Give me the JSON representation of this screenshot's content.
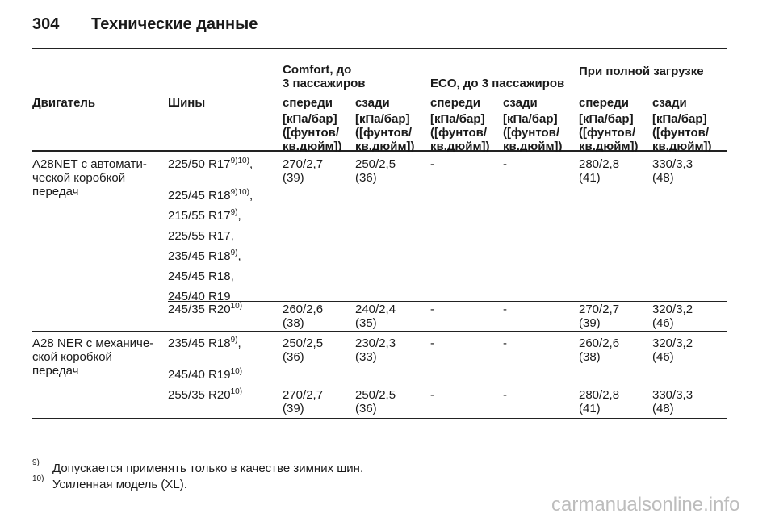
{
  "header": {
    "page_number": "304",
    "title": "Технические данные"
  },
  "table": {
    "group_headers": [
      [
        "Comfort, до",
        "3 пассажиров"
      ],
      [
        "ECO, до 3 пассажиров"
      ],
      [
        "При полной загрузке"
      ]
    ],
    "column_headers": [
      "Двигатель",
      "Шины",
      "спереди",
      "сзади",
      "спереди",
      "сзади",
      "спереди",
      "сзади"
    ],
    "unit_label": [
      "[кПа/бар]",
      "([фунтов/",
      "кв.дюйм])"
    ],
    "rows": [
      {
        "engine": [
          "A28NET с автомати-",
          "ческой коробкой",
          "передач"
        ],
        "groups": [
          {
            "tyres": [
              {
                "size": "225/50 R17",
                "note": "9)10)",
                "suffix": ","
              },
              {
                "size": "225/45 R18",
                "note": "9)10)",
                "suffix": ","
              },
              {
                "size": "215/55 R17",
                "note": "9)",
                "suffix": ","
              },
              {
                "size": "225/55 R17,"
              },
              {
                "size": "235/45 R18",
                "note": "9)",
                "suffix": ","
              },
              {
                "size": "245/45 R18,"
              },
              {
                "size": "245/40 R19"
              }
            ],
            "pressures": [
              [
                "270/2,7",
                "(39)"
              ],
              [
                "250/2,5",
                "(36)"
              ],
              [
                "-"
              ],
              [
                "-"
              ],
              [
                "280/2,8",
                "(41)"
              ],
              [
                "330/3,3",
                "(48)"
              ]
            ]
          },
          {
            "tyres": [
              {
                "size": "245/35 R20",
                "note": "10)"
              }
            ],
            "pressures": [
              [
                "260/2,6",
                "(38)"
              ],
              [
                "240/2,4",
                "(35)"
              ],
              [
                "-"
              ],
              [
                "-"
              ],
              [
                "270/2,7",
                "(39)"
              ],
              [
                "320/3,2",
                "(46)"
              ]
            ]
          }
        ]
      },
      {
        "engine": [
          "A28 NER с механиче-",
          "ской коробкой",
          "передач"
        ],
        "groups": [
          {
            "tyres": [
              {
                "size": "235/45 R18",
                "note": "9)",
                "suffix": ","
              },
              {
                "size": "245/40 R19",
                "note": "10)"
              }
            ],
            "pressures": [
              [
                "250/2,5",
                "(36)"
              ],
              [
                "230/2,3",
                "(33)"
              ],
              [
                "-"
              ],
              [
                "-"
              ],
              [
                "260/2,6",
                "(38)"
              ],
              [
                "320/3,2",
                "(46)"
              ]
            ]
          },
          {
            "tyres": [
              {
                "size": "255/35 R20",
                "note": "10)"
              }
            ],
            "pressures": [
              [
                "270/2,7",
                "(39)"
              ],
              [
                "250/2,5",
                "(36)"
              ],
              [
                "-"
              ],
              [
                "-"
              ],
              [
                "280/2,8",
                "(41)"
              ],
              [
                "330/3,3",
                "(48)"
              ]
            ]
          }
        ]
      }
    ]
  },
  "footnotes": [
    {
      "mark": "9)",
      "text": "Допускается применять только в качестве зимних шин."
    },
    {
      "mark": "10)",
      "text": "Усиленная модель (XL)."
    }
  ],
  "watermark": "carmanualsonline.info"
}
